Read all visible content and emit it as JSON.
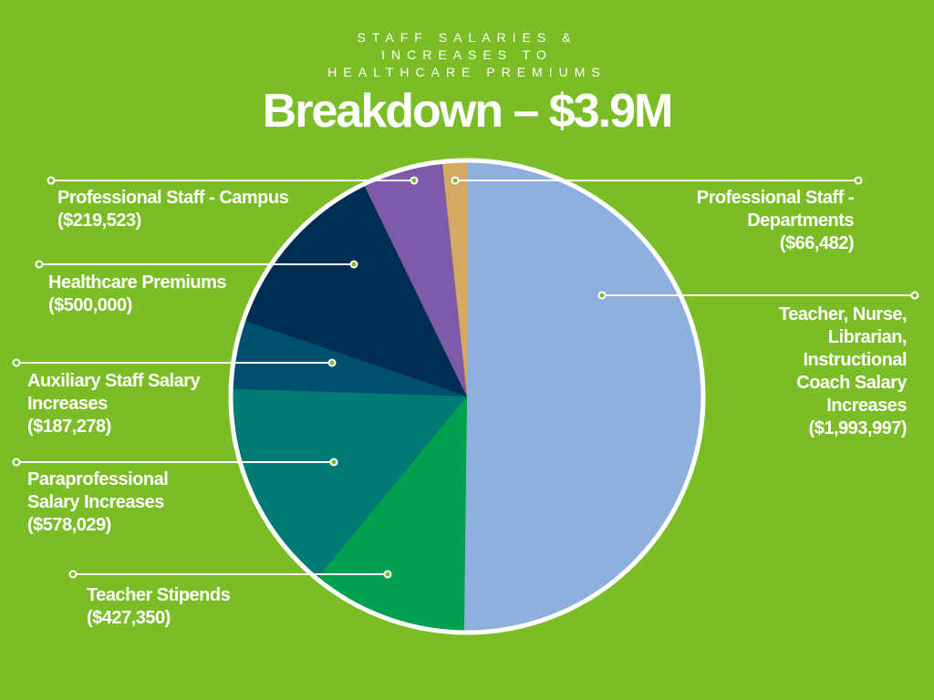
{
  "header": {
    "subtitle_lines": [
      "STAFF SALARIES &",
      "INCREASES TO",
      "HEALTHCARE PREMIUMS"
    ],
    "title": "Breakdown – $3.9M"
  },
  "chart_data": {
    "type": "pie",
    "start": "12 o'clock",
    "direction": "clockwise",
    "slices": [
      {
        "label_lines": [
          "Teacher, Nurse,",
          "Librarian,",
          "Instructional",
          "Coach Salary",
          "Increases",
          "($1,993,997)"
        ],
        "value": 1993997,
        "color": "#8eb0de"
      },
      {
        "label_lines": [
          "Teacher Stipends",
          "($427,350)"
        ],
        "value": 427350,
        "color": "#00a050"
      },
      {
        "label_lines": [
          "Paraprofessional",
          "Salary Increases",
          "($578,029)"
        ],
        "value": 578029,
        "color": "#007a72"
      },
      {
        "label_lines": [
          "Auxiliary Staff Salary",
          "Increases",
          "($187,278)"
        ],
        "value": 187278,
        "color": "#004f70"
      },
      {
        "label_lines": [
          "Healthcare Premiums",
          "($500,000)"
        ],
        "value": 500000,
        "color": "#002e52"
      },
      {
        "label_lines": [
          "Professional Staff - Campus",
          "($219,523)"
        ],
        "value": 219523,
        "color": "#805aaa"
      },
      {
        "label_lines": [
          "Professional Staff -",
          "Departments",
          "($66,482)"
        ],
        "value": 66482,
        "color": "#d5a863"
      }
    ]
  }
}
